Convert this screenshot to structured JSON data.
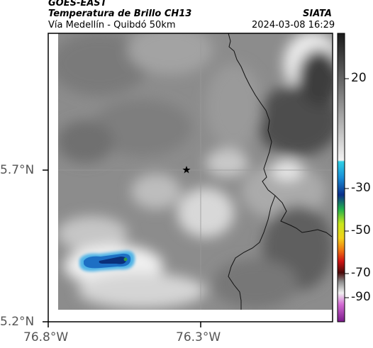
{
  "header": {
    "line1_left": "GOES-EAST",
    "line2_left": "Temperatura de Brillo CH13",
    "line2_right": "SIATA",
    "line3_left": "Vía Medellín - Quibdó 50km",
    "line3_right": "2024-03-08 16:29"
  },
  "axes": {
    "y_ticks": [
      "5.7°N",
      "5.2°N"
    ],
    "x_ticks": [
      "76.8°W",
      "76.3°W"
    ]
  },
  "colorbar": {
    "ticks": [
      "20",
      "-30",
      "-50",
      "-70",
      "-90"
    ]
  },
  "marker": {
    "icon": "star-icon"
  },
  "colors": {
    "cold_cloud": "#1d6fc4",
    "cold_cloud_core": "#0a2f7a",
    "border_line": "#000000"
  }
}
